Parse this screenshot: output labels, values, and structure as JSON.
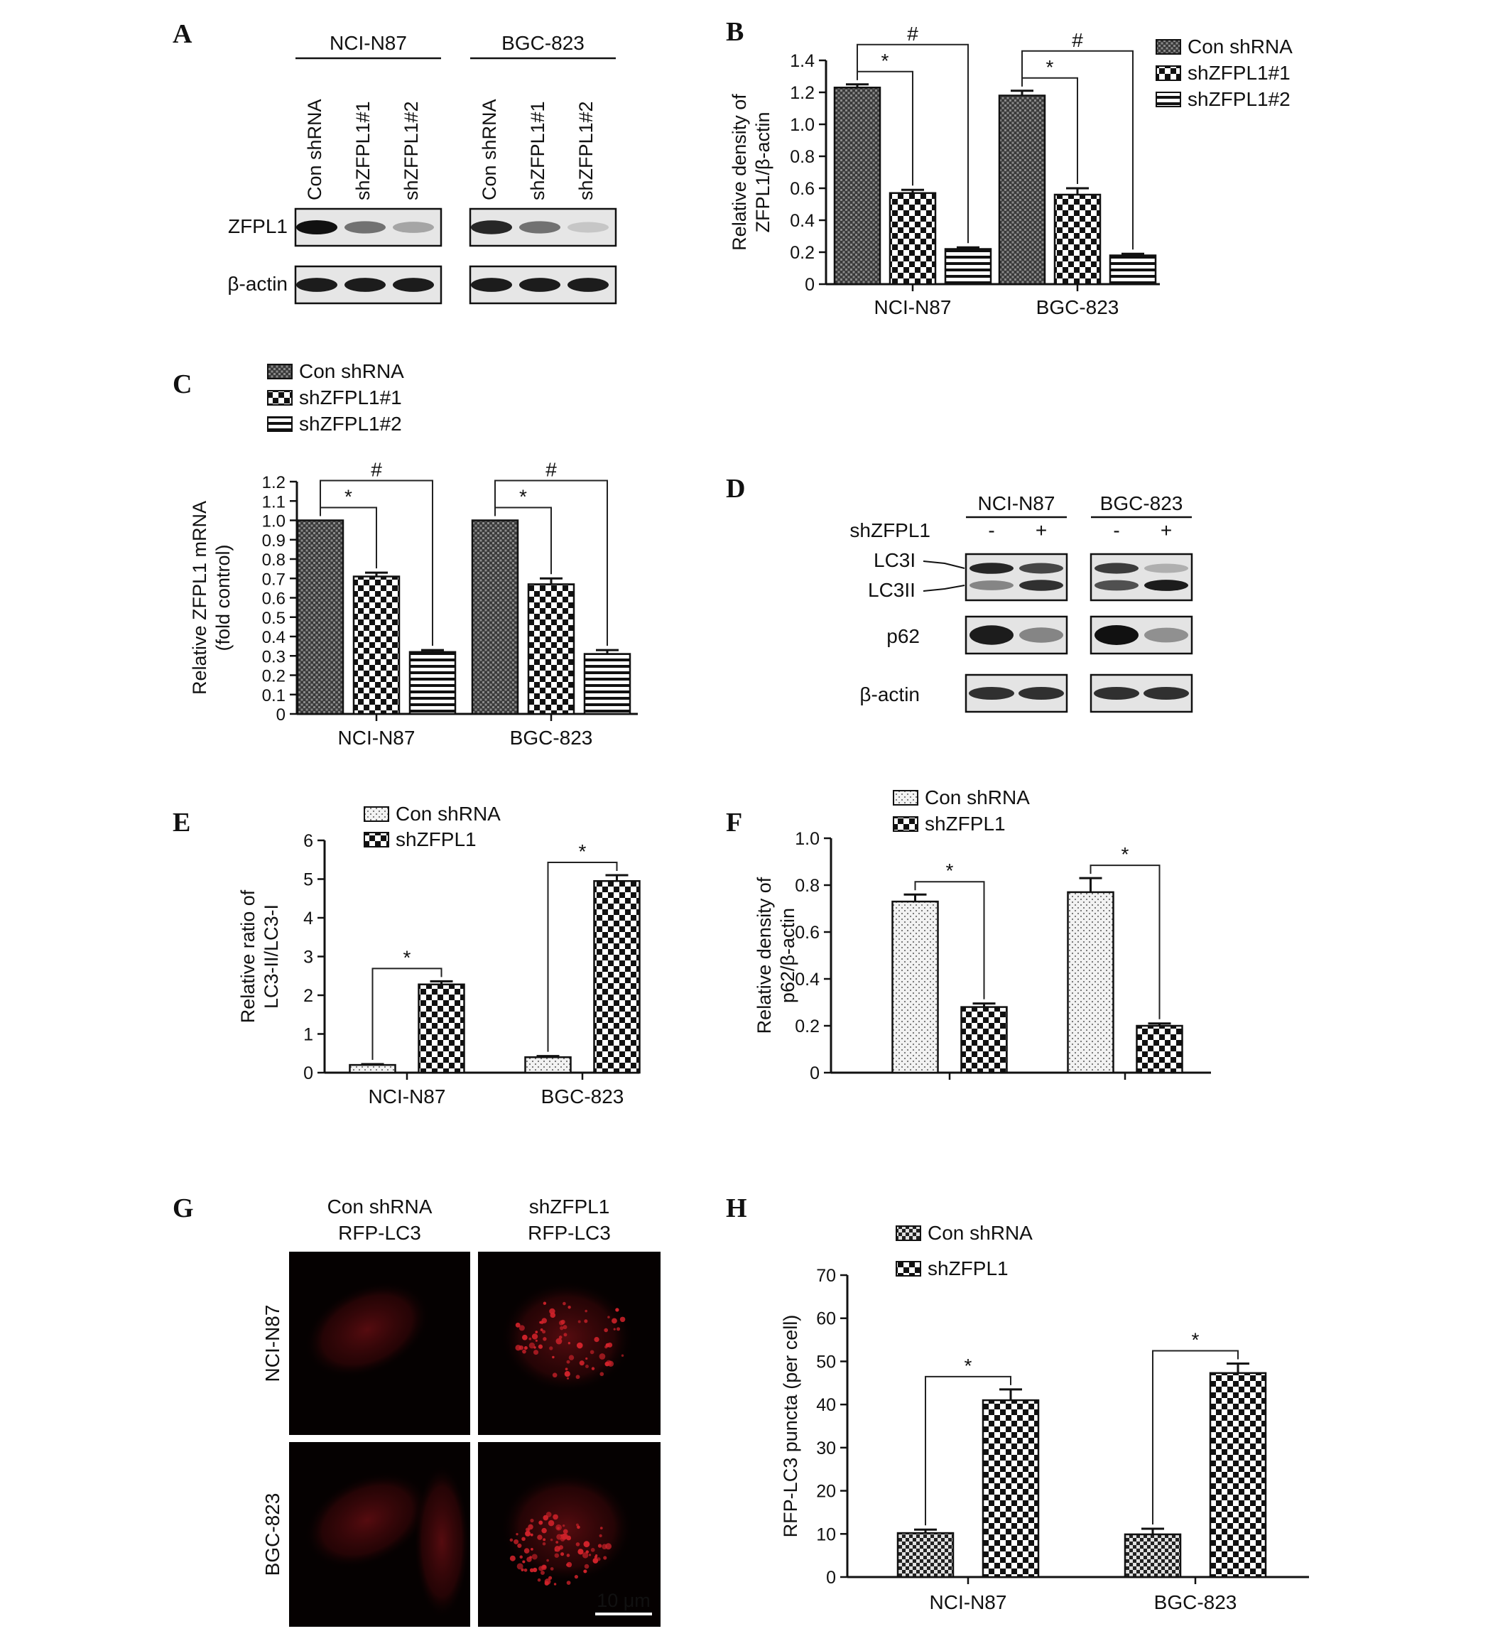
{
  "panels": {
    "A": {
      "letter": "A",
      "groups": [
        {
          "name": "NCI-N87",
          "lanes": [
            "Con shRNA",
            "shZFPL1#1",
            "shZFPL1#2"
          ]
        },
        {
          "name": "BGC-823",
          "lanes": [
            "Con shRNA",
            "shZFPL1#1",
            "shZFPL1#2"
          ]
        }
      ],
      "rows": [
        {
          "label": "ZFPL1",
          "intensities": [
            [
              1.0,
              0.55,
              0.3
            ],
            [
              0.9,
              0.55,
              0.15
            ]
          ]
        },
        {
          "label": "β-actin",
          "intensities": [
            [
              0.95,
              0.95,
              0.95
            ],
            [
              0.95,
              0.95,
              0.95
            ]
          ]
        }
      ]
    },
    "D": {
      "letter": "D",
      "groups": [
        {
          "name": "NCI-N87",
          "signs": [
            "-",
            "+"
          ]
        },
        {
          "name": "BGC-823",
          "signs": [
            "-",
            "+"
          ]
        }
      ],
      "condition_label": "shZFPL1",
      "rows": [
        {
          "label": "LC3I",
          "intensities": [
            [
              0.9,
              0.75
            ],
            [
              0.8,
              0.25
            ]
          ]
        },
        {
          "label": "LC3II",
          "intensities": [
            [
              0.45,
              0.85
            ],
            [
              0.7,
              0.95
            ]
          ]
        },
        {
          "label": "p62",
          "intensities": [
            [
              0.95,
              0.45
            ],
            [
              1.0,
              0.4
            ]
          ]
        },
        {
          "label": "β-actin",
          "intensities": [
            [
              0.85,
              0.85
            ],
            [
              0.85,
              0.85
            ]
          ]
        }
      ]
    },
    "G": {
      "letter": "G",
      "columns": [
        {
          "name": "Con shRNA",
          "marker": "RFP-LC3"
        },
        {
          "name": "shZFPL1",
          "marker": "RFP-LC3"
        }
      ],
      "rows": [
        "NCI-N87",
        "BGC-823"
      ],
      "scale_bar": "10 μm",
      "marker_color": "#e0201c"
    }
  },
  "chart_data": [
    {
      "panel": "B",
      "type": "bar",
      "categories": [
        "NCI-N87",
        "BGC-823"
      ],
      "series": [
        {
          "name": "Con shRNA",
          "pattern": "fine",
          "values": [
            1.23,
            1.18
          ],
          "errors": [
            0.02,
            0.03
          ]
        },
        {
          "name": "shZFPL1#1",
          "pattern": "check",
          "values": [
            0.57,
            0.56
          ],
          "errors": [
            0.02,
            0.04
          ]
        },
        {
          "name": "shZFPL1#2",
          "pattern": "hlines",
          "values": [
            0.22,
            0.18
          ],
          "errors": [
            0.01,
            0.01
          ]
        }
      ],
      "ylabel": [
        "Relative density of",
        "ZFPL1/β-actin"
      ],
      "ylim": [
        0,
        1.4
      ],
      "yticks": [
        "0",
        "0.2",
        "0.4",
        "0.6",
        "0.8",
        "1.0",
        "1.2",
        "1.4"
      ],
      "legend_position": "right",
      "significance": [
        {
          "group": 0,
          "from": 0,
          "to": 1,
          "symbol": "*"
        },
        {
          "group": 0,
          "from": 0,
          "to": 2,
          "symbol": "#"
        },
        {
          "group": 1,
          "from": 0,
          "to": 1,
          "symbol": "*"
        },
        {
          "group": 1,
          "from": 0,
          "to": 2,
          "symbol": "#"
        }
      ]
    },
    {
      "panel": "C",
      "type": "bar",
      "categories": [
        "NCI-N87",
        "BGC-823"
      ],
      "series": [
        {
          "name": "Con shRNA",
          "pattern": "fine",
          "values": [
            1.0,
            1.0
          ],
          "errors": [
            0,
            0
          ]
        },
        {
          "name": "shZFPL1#1",
          "pattern": "check",
          "values": [
            0.71,
            0.67
          ],
          "errors": [
            0.02,
            0.03
          ]
        },
        {
          "name": "shZFPL1#2",
          "pattern": "hlines",
          "values": [
            0.32,
            0.31
          ],
          "errors": [
            0.01,
            0.02
          ]
        }
      ],
      "ylabel": [
        "Relative ZFPL1 mRNA",
        "(fold control)"
      ],
      "ylim": [
        0,
        1.2
      ],
      "yticks": [
        "0",
        "0.1",
        "0.2",
        "0.3",
        "0.4",
        "0.5",
        "0.6",
        "0.7",
        "0.8",
        "0.9",
        "1.0",
        "1.1",
        "1.2"
      ],
      "legend_position": "top-left",
      "significance": [
        {
          "group": 0,
          "from": 0,
          "to": 1,
          "symbol": "*"
        },
        {
          "group": 0,
          "from": 0,
          "to": 2,
          "symbol": "#"
        },
        {
          "group": 1,
          "from": 0,
          "to": 1,
          "symbol": "*"
        },
        {
          "group": 1,
          "from": 0,
          "to": 2,
          "symbol": "#"
        }
      ]
    },
    {
      "panel": "E",
      "type": "bar",
      "categories": [
        "NCI-N87",
        "BGC-823"
      ],
      "series": [
        {
          "name": "Con shRNA",
          "pattern": "dots",
          "values": [
            0.2,
            0.4
          ],
          "errors": [
            0.02,
            0.03
          ]
        },
        {
          "name": "shZFPL1",
          "pattern": "check",
          "values": [
            2.28,
            4.95
          ],
          "errors": [
            0.08,
            0.15
          ]
        }
      ],
      "ylabel": [
        "Relative ratio of",
        "LC3-II/LC3-I"
      ],
      "ylim": [
        0,
        6
      ],
      "yticks": [
        "0",
        "1",
        "2",
        "3",
        "4",
        "5",
        "6"
      ],
      "legend_position": "top-left",
      "significance": [
        {
          "group": 0,
          "from": 0,
          "to": 1,
          "symbol": "*"
        },
        {
          "group": 1,
          "from": 0,
          "to": 1,
          "symbol": "*"
        }
      ]
    },
    {
      "panel": "F",
      "type": "bar",
      "categories": [
        "",
        ""
      ],
      "series": [
        {
          "name": "Con shRNA",
          "pattern": "dots",
          "values": [
            0.73,
            0.77
          ],
          "errors": [
            0.03,
            0.06
          ]
        },
        {
          "name": "shZFPL1",
          "pattern": "check",
          "values": [
            0.28,
            0.2
          ],
          "errors": [
            0.015,
            0.01
          ]
        }
      ],
      "ylabel": [
        "Relative density of",
        "p62/β-actin"
      ],
      "ylim": [
        0,
        1.0
      ],
      "yticks": [
        "0",
        "0.2",
        "0.4",
        "0.6",
        "0.8",
        "1.0"
      ],
      "legend_position": "top-left",
      "significance": [
        {
          "group": 0,
          "from": 0,
          "to": 1,
          "symbol": "*"
        },
        {
          "group": 1,
          "from": 0,
          "to": 1,
          "symbol": "*"
        }
      ]
    },
    {
      "panel": "H",
      "type": "bar",
      "categories": [
        "NCI-N87",
        "BGC-823"
      ],
      "series": [
        {
          "name": "Con shRNA",
          "pattern": "check-small",
          "values": [
            10.2,
            9.9
          ],
          "errors": [
            0.8,
            1.3
          ]
        },
        {
          "name": "shZFPL1",
          "pattern": "check",
          "values": [
            41.0,
            47.3
          ],
          "errors": [
            2.5,
            2.2
          ]
        }
      ],
      "ylabel": [
        "RFP-LC3 puncta (per cell)"
      ],
      "ylim": [
        0,
        70
      ],
      "yticks": [
        "0",
        "10",
        "20",
        "30",
        "40",
        "50",
        "60",
        "70"
      ],
      "legend_position": "top-left",
      "significance": [
        {
          "group": 0,
          "from": 0,
          "to": 1,
          "symbol": "*"
        },
        {
          "group": 1,
          "from": 0,
          "to": 1,
          "symbol": "*"
        }
      ]
    }
  ]
}
